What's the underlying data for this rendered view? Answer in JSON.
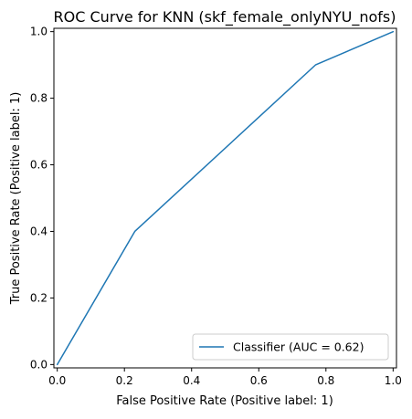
{
  "chart_data": {
    "type": "line",
    "title": "ROC Curve for KNN (skf_female_onlyNYU_nofs)",
    "xlabel": "False Positive Rate (Positive label: 1)",
    "ylabel": "True Positive Rate (Positive label: 1)",
    "xlim": [
      -0.01,
      1.01
    ],
    "ylim": [
      -0.01,
      1.01
    ],
    "xticks": [
      0.0,
      0.2,
      0.4,
      0.6,
      0.8,
      1.0
    ],
    "yticks": [
      0.0,
      0.2,
      0.4,
      0.6,
      0.8,
      1.0
    ],
    "xtick_labels": [
      "0.0",
      "0.2",
      "0.4",
      "0.6",
      "0.8",
      "1.0"
    ],
    "ytick_labels": [
      "0.0",
      "0.2",
      "0.4",
      "0.6",
      "0.8",
      "1.0"
    ],
    "grid": false,
    "legend_position": "lower-right",
    "series": [
      {
        "name": "Classifier (AUC = 0.62)",
        "color": "#1f77b4",
        "x": [
          0.0,
          0.231,
          0.769,
          1.0
        ],
        "y": [
          0.0,
          0.4,
          0.9,
          1.0
        ]
      }
    ]
  }
}
